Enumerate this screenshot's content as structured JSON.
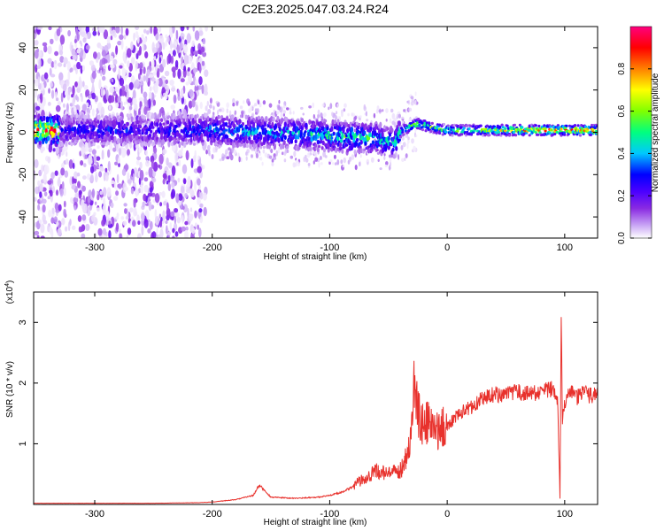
{
  "title": "C2E3.2025.047.03.24.R24",
  "chart_data": [
    {
      "type": "heatmap",
      "xlabel": "Height of straight line (km)",
      "ylabel": "Frequency (Hz)",
      "xlim": [
        -352,
        128
      ],
      "ylim": [
        -50,
        50
      ],
      "xticks": [
        -300,
        -200,
        -100,
        0,
        100
      ],
      "yticks": [
        -40,
        -20,
        0,
        20,
        40
      ],
      "colorbar": {
        "label": "Normalized spectral amplitude",
        "range": [
          0,
          1
        ],
        "ticks": [
          0.0,
          0.2,
          0.4,
          0.6,
          0.8
        ],
        "colormap": [
          "#ffffff",
          "#c9a6f5",
          "#8a2be2",
          "#4b00ff",
          "#0000ff",
          "#00c8ff",
          "#00ff7f",
          "#80ff00",
          "#ffff00",
          "#ff8000",
          "#ff0000",
          "#ff007f"
        ]
      },
      "ridge": [
        {
          "x": -330,
          "f": 1,
          "amp": 0.35
        },
        {
          "x": -300,
          "f": 1,
          "amp": 0.38
        },
        {
          "x": -260,
          "f": 1,
          "amp": 0.35
        },
        {
          "x": -220,
          "f": 1,
          "amp": 0.4
        },
        {
          "x": -200,
          "f": 1,
          "amp": 0.45
        },
        {
          "x": -160,
          "f": 0,
          "amp": 0.5
        },
        {
          "x": -120,
          "f": -1,
          "amp": 0.52
        },
        {
          "x": -90,
          "f": -2,
          "amp": 0.6
        },
        {
          "x": -60,
          "f": -3,
          "amp": 0.55
        },
        {
          "x": -45,
          "f": -5,
          "amp": 0.5
        },
        {
          "x": -38,
          "f": 1,
          "amp": 0.65
        },
        {
          "x": -25,
          "f": 4,
          "amp": 0.75
        },
        {
          "x": -10,
          "f": 2,
          "amp": 0.6
        },
        {
          "x": 0,
          "f": 1,
          "amp": 0.65
        },
        {
          "x": 40,
          "f": 1,
          "amp": 0.72
        },
        {
          "x": 70,
          "f": 1,
          "amp": 0.85
        },
        {
          "x": 100,
          "f": 1,
          "amp": 0.9
        },
        {
          "x": 128,
          "f": 1,
          "amp": 0.9
        }
      ]
    },
    {
      "type": "line",
      "xlabel": "Height of straight line (km)",
      "ylabel": "SNR (10 * v/v)",
      "y_multiplier": "(x10^4)",
      "xlim": [
        -352,
        128
      ],
      "ylim": [
        0,
        3.5
      ],
      "xticks": [
        -300,
        -200,
        -100,
        0,
        100
      ],
      "yticks": [
        1,
        2,
        3
      ],
      "color": "#e8312c",
      "x": [
        -352,
        -300,
        -250,
        -210,
        -200,
        -180,
        -165,
        -160,
        -150,
        -130,
        -110,
        -100,
        -90,
        -80,
        -70,
        -60,
        -50,
        -40,
        -35,
        -32,
        -30,
        -28,
        -25,
        -20,
        -15,
        -10,
        0,
        10,
        20,
        30,
        40,
        50,
        60,
        70,
        80,
        90,
        94,
        96,
        97,
        98,
        100,
        105,
        110,
        115,
        120,
        128
      ],
      "y": [
        0.02,
        0.02,
        0.02,
        0.03,
        0.04,
        0.08,
        0.15,
        0.32,
        0.12,
        0.1,
        0.12,
        0.15,
        0.2,
        0.3,
        0.45,
        0.55,
        0.5,
        0.55,
        0.8,
        1.0,
        1.3,
        2.0,
        1.5,
        1.3,
        1.35,
        1.2,
        1.3,
        1.5,
        1.6,
        1.75,
        1.82,
        1.8,
        1.85,
        1.82,
        1.85,
        1.9,
        1.75,
        0.1,
        3.4,
        1.4,
        1.7,
        1.85,
        1.75,
        1.85,
        1.8,
        1.8
      ]
    }
  ]
}
